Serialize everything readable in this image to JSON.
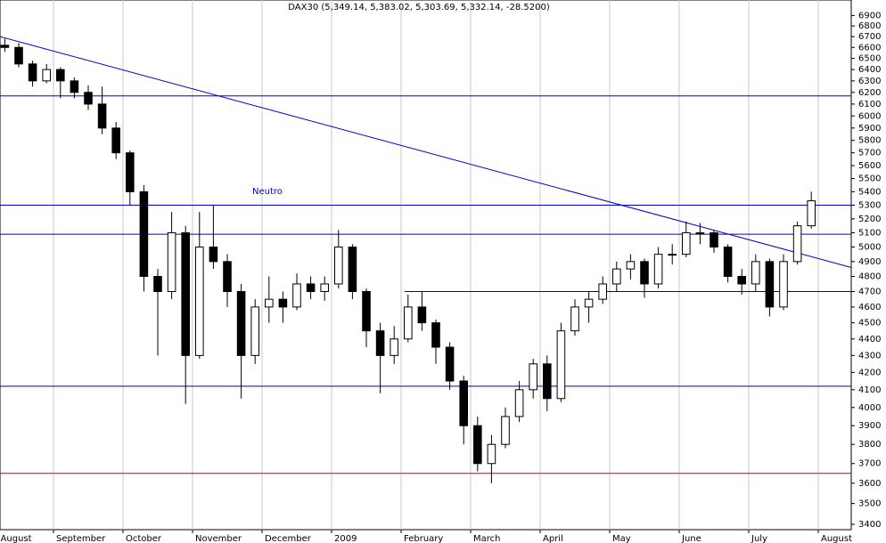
{
  "chart_data": {
    "type": "candlestick",
    "title": "DAX30 (5,349.14, 5,383.02, 5,303.69, 5,332.14, -28.5200)",
    "categories": [
      "August",
      null,
      null,
      null,
      "September",
      null,
      null,
      null,
      null,
      "October",
      null,
      null,
      null,
      null,
      "November",
      null,
      null,
      null,
      null,
      "December",
      null,
      null,
      null,
      null,
      "2009",
      null,
      null,
      null,
      null,
      "February",
      null,
      null,
      null,
      null,
      "March",
      null,
      null,
      null,
      null,
      "April",
      null,
      null,
      null,
      null,
      "May",
      null,
      null,
      null,
      null,
      "June",
      null,
      null,
      null,
      null,
      "July",
      null,
      null,
      null,
      null,
      "August"
    ],
    "open": [
      6620,
      6600,
      6450,
      6300,
      6400,
      6300,
      6200,
      6100,
      5900,
      5700,
      5400,
      4800,
      4700,
      5100,
      4300,
      5000,
      4900,
      4700,
      4300,
      4600,
      4650,
      4600,
      4750,
      4700,
      4750,
      5000,
      4700,
      4450,
      4300,
      4400,
      4600,
      4500,
      4350,
      4150,
      3900,
      3700,
      3800,
      3950,
      4100,
      4250,
      4050,
      4450,
      4600,
      4650,
      4750,
      4850,
      4900,
      4750,
      4950,
      4950,
      5100,
      5100,
      5000,
      4800,
      4750,
      4900,
      4600,
      4900,
      5150,
      null
    ],
    "high": [
      6680,
      6640,
      6480,
      6450,
      6420,
      6330,
      6260,
      6250,
      5950,
      5720,
      5450,
      4850,
      5250,
      5150,
      5250,
      5300,
      4950,
      4750,
      4650,
      4800,
      4700,
      4820,
      4800,
      4800,
      5120,
      5020,
      4720,
      4500,
      4480,
      4680,
      4700,
      4520,
      4380,
      4180,
      3950,
      3850,
      4000,
      4150,
      4280,
      4300,
      4500,
      4650,
      4700,
      4800,
      4900,
      4950,
      4920,
      5000,
      5020,
      5180,
      5170,
      5120,
      5020,
      4850,
      4950,
      4920,
      4950,
      5180,
      5400,
      null
    ],
    "low": [
      6560,
      6420,
      6250,
      6280,
      6150,
      6150,
      6050,
      5850,
      5650,
      5300,
      4700,
      4300,
      4650,
      4020,
      4280,
      4850,
      4600,
      4050,
      4250,
      4500,
      4500,
      4580,
      4650,
      4640,
      4720,
      4650,
      4350,
      4080,
      4250,
      4380,
      4450,
      4250,
      4100,
      3800,
      3660,
      3600,
      3780,
      3920,
      4050,
      3980,
      4030,
      4420,
      4500,
      4620,
      4700,
      4780,
      4660,
      4720,
      4880,
      4930,
      5020,
      4960,
      4760,
      4680,
      4700,
      4540,
      4580,
      4880,
      5130,
      null
    ],
    "close": [
      6600,
      6450,
      6300,
      6400,
      6300,
      6200,
      6100,
      5900,
      5700,
      5400,
      4800,
      4700,
      5100,
      4300,
      5000,
      4900,
      4700,
      4300,
      4600,
      4650,
      4600,
      4750,
      4700,
      4750,
      5000,
      4700,
      4450,
      4300,
      4400,
      4600,
      4500,
      4350,
      4150,
      3900,
      3700,
      3800,
      3950,
      4100,
      4250,
      4050,
      4450,
      4600,
      4650,
      4750,
      4850,
      4900,
      4750,
      4950,
      4950,
      5100,
      5100,
      5000,
      4800,
      4750,
      4900,
      4600,
      4900,
      5150,
      5332,
      null
    ],
    "log_scale": true,
    "ylim": [
      3375,
      7050
    ],
    "yticks": [
      3400,
      3500,
      3600,
      3700,
      3800,
      3900,
      4000,
      4100,
      4200,
      4300,
      4400,
      4500,
      4600,
      4700,
      4800,
      4900,
      5000,
      5100,
      5200,
      5300,
      5400,
      5500,
      5600,
      5700,
      5800,
      5900,
      6000,
      6100,
      6200,
      6300,
      6400,
      6500,
      6600,
      6700,
      6800,
      6900
    ],
    "levels": [
      6170,
      5300,
      5090,
      4700,
      4120,
      3650
    ],
    "level_colors": [
      "#0000cc",
      "#0000cc",
      "#0000cc",
      "#0000cc",
      "#0000cc",
      "#cc0000"
    ],
    "trendline": [
      6700,
      4860
    ],
    "trendline_color": "#0000cc",
    "annotation": "Neutro"
  }
}
